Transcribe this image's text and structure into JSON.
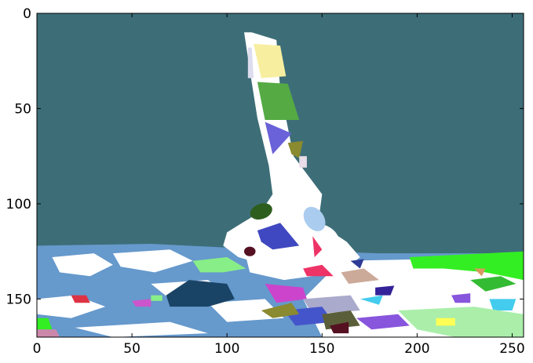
{
  "chart_data": {
    "type": "heatmap",
    "title": "",
    "xlabel": "",
    "ylabel": "",
    "xlim": [
      0,
      256
    ],
    "ylim": [
      170,
      0
    ],
    "xticks": [
      "0",
      "50",
      "100",
      "150",
      "200",
      "250"
    ],
    "xtick_values": [
      0,
      50,
      100,
      150,
      200,
      250
    ],
    "yticks": [
      "0",
      "50",
      "100",
      "150"
    ],
    "ytick_values": [
      0,
      50,
      100,
      150
    ],
    "grid": false,
    "content": "segmentation label map (windsurfer over water)",
    "colors": {
      "sky": "#3d6e78",
      "sail_and_surfer": "#ffffff",
      "sea": "#6699cc",
      "yellow": "#f8eea0",
      "green": "#55aa44",
      "blue_violet": "#6a62d8",
      "olive": "#8a8a30",
      "dark_green": "#2e5e1e",
      "royal_blue": "#3f48c0",
      "light_blue": "#aaccee",
      "red": "#ee3366",
      "dark_red": "#551122",
      "navy": "#1a4466",
      "light_green": "#88ee88",
      "bright_green": "#33ee22",
      "magenta": "#cc44cc",
      "lavender": "#aaaacc",
      "tan": "#ccaa99",
      "cyan": "#44ccee",
      "pale_green": "#aaeeaa",
      "purple": "#8855dd"
    }
  }
}
